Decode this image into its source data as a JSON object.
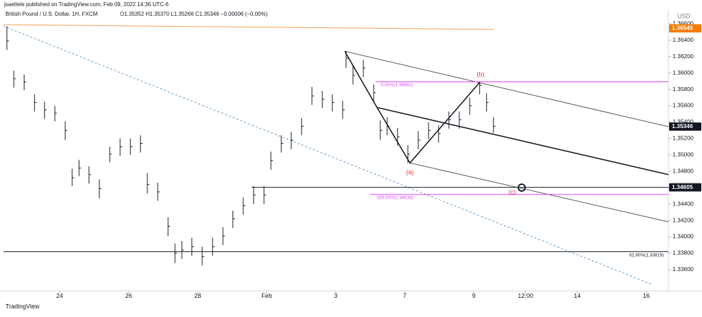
{
  "chart_data": {
    "type": "ohlc",
    "publisher_line": "jsaettele published on TradingView.com, Feb 09, 2022 14:36 UTC-6",
    "symbol": "British Pound / U.S. Dollar, 1H, FXCM",
    "ohlc_readout": "O1.35352 H1.35370 L1.35266 C1.35346 −0.00006 (−0.00%)",
    "currency": "USD",
    "brand": "TradingView",
    "color": "#131722",
    "x": [
      -1.53,
      -1.33,
      -1.03,
      -0.73,
      -0.44,
      -0.14,
      0.16,
      0.36,
      0.56,
      0.85,
      1.15,
      1.45,
      1.75,
      2.05,
      2.34,
      2.54,
      2.84,
      3.14,
      3.34,
      3.54,
      3.83,
      4.13,
      4.43,
      4.73,
      5.02,
      5.32,
      5.62,
      5.92,
      6.12,
      6.42,
      6.71,
      7.01,
      7.31,
      7.61,
      7.9,
      8.2,
      8.3,
      8.5,
      8.8,
      9.1,
      9.29,
      9.49,
      9.79,
      10.09,
      10.39,
      10.69,
      10.98,
      11.28,
      11.58,
      11.88,
      12.17,
      12.37,
      12.57
    ],
    "close": [
      1.3639,
      1.3593,
      1.3589,
      1.3564,
      1.3555,
      1.3551,
      1.353,
      1.3472,
      1.3484,
      1.3476,
      1.3459,
      1.3501,
      1.351,
      1.351,
      1.3514,
      1.3464,
      1.3455,
      1.3413,
      1.338,
      1.3384,
      1.3388,
      1.3376,
      1.3388,
      1.3401,
      1.3422,
      1.3438,
      1.3451,
      1.3451,
      1.3493,
      1.3514,
      1.3518,
      1.3535,
      1.3572,
      1.3568,
      1.3564,
      1.3555,
      1.3618,
      1.3597,
      1.3606,
      1.3576,
      1.353,
      1.3535,
      1.3522,
      1.3501,
      1.3518,
      1.353,
      1.3526,
      1.3543,
      1.3543,
      1.356,
      1.3585,
      1.3564,
      1.3535
    ],
    "high": [
      1.3657,
      1.3603,
      1.3598,
      1.3574,
      1.3565,
      1.356,
      1.3541,
      1.3483,
      1.3494,
      1.3486,
      1.347,
      1.351,
      1.352,
      1.352,
      1.3524,
      1.3478,
      1.3466,
      1.3424,
      1.3392,
      1.3395,
      1.3399,
      1.3388,
      1.3399,
      1.3412,
      1.3432,
      1.3448,
      1.3462,
      1.3462,
      1.3504,
      1.3524,
      1.3528,
      1.3545,
      1.3583,
      1.3578,
      1.3574,
      1.3566,
      1.3627,
      1.3608,
      1.3616,
      1.3586,
      1.3542,
      1.3546,
      1.3533,
      1.3512,
      1.3529,
      1.354,
      1.3536,
      1.3553,
      1.3553,
      1.357,
      1.3589,
      1.3575,
      1.3546
    ],
    "low": [
      1.3628,
      1.3582,
      1.3579,
      1.3553,
      1.3544,
      1.3541,
      1.3518,
      1.3462,
      1.3474,
      1.3465,
      1.3447,
      1.3491,
      1.3499,
      1.35,
      1.3503,
      1.3453,
      1.3444,
      1.3401,
      1.3368,
      1.3373,
      1.3377,
      1.3365,
      1.3377,
      1.339,
      1.3411,
      1.3427,
      1.344,
      1.344,
      1.3482,
      1.3503,
      1.3507,
      1.3524,
      1.3561,
      1.3557,
      1.3553,
      1.3544,
      1.3606,
      1.3586,
      1.3595,
      1.3565,
      1.3518,
      1.3524,
      1.3511,
      1.349,
      1.3507,
      1.3519,
      1.3515,
      1.3532,
      1.3532,
      1.3549,
      1.3574,
      1.3553,
      1.3527
    ],
    "xlim": [
      -1.63,
      17.64
    ],
    "xticks": [
      {
        "value": 0,
        "label": "24"
      },
      {
        "value": 2,
        "label": "26"
      },
      {
        "value": 4,
        "label": "28"
      },
      {
        "value": 6,
        "label": "Feb"
      },
      {
        "value": 8,
        "label": "3"
      },
      {
        "value": 10,
        "label": "7"
      },
      {
        "value": 12,
        "label": "9"
      },
      {
        "value": 13.5,
        "label": "12:00"
      },
      {
        "value": 15,
        "label": "14"
      },
      {
        "value": 17,
        "label": "16"
      }
    ],
    "ylim": [
      1.3334,
      1.3674
    ],
    "yticks": [
      {
        "value": 1.336,
        "label": "1.33600"
      },
      {
        "value": 1.338,
        "label": "1.33800"
      },
      {
        "value": 1.34,
        "label": "1.34000"
      },
      {
        "value": 1.342,
        "label": "1.34200"
      },
      {
        "value": 1.344,
        "label": "1.34400"
      },
      {
        "value": 1.346,
        "label": "1.34600"
      },
      {
        "value": 1.348,
        "label": "1.34800"
      },
      {
        "value": 1.35,
        "label": "1.35000"
      },
      {
        "value": 1.352,
        "label": "1.35200"
      },
      {
        "value": 1.354,
        "label": "1.35400"
      },
      {
        "value": 1.356,
        "label": "1.35600"
      },
      {
        "value": 1.358,
        "label": "1.35800"
      },
      {
        "value": 1.36,
        "label": "1.36000"
      },
      {
        "value": 1.362,
        "label": "1.36200"
      },
      {
        "value": 1.364,
        "label": "1.36400"
      },
      {
        "value": 1.366,
        "label": "1.36600"
      }
    ],
    "grid": false,
    "price_lines": [
      {
        "value": 1.36545,
        "color": "#f57c00"
      },
      {
        "value": 1.35346,
        "color": "#131722"
      },
      {
        "value": 1.34605,
        "color": "#131722"
      }
    ],
    "fib_levels": [
      {
        "value": 1.35892,
        "label": "0.00%(1.35892)",
        "color": "#e040fb"
      },
      {
        "value": 1.34518,
        "label": "100.00%(1.34518)",
        "color": "#e040fb"
      },
      {
        "value": 1.33819,
        "label": "61.80%(1.33819)",
        "color": "#131722"
      }
    ],
    "wave_labels": [
      "(a)",
      "(b)",
      "(c)"
    ]
  }
}
